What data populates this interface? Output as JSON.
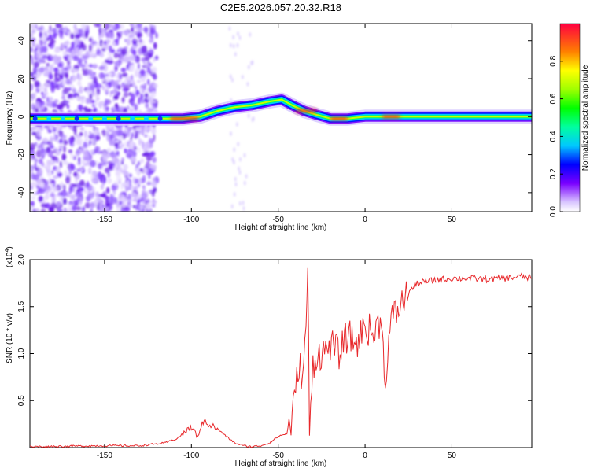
{
  "title": "C2E5.2026.057.20.32.R18",
  "chart_data": [
    {
      "type": "heatmap",
      "xlabel": "Height of straight line (km)",
      "ylabel": "Frequency (Hz)",
      "xlim": [
        -193,
        96
      ],
      "ylim": [
        -50,
        49
      ],
      "x_ticks": [
        -150,
        -100,
        -50,
        0,
        50
      ],
      "y_ticks": [
        -40,
        -20,
        0,
        20,
        40
      ],
      "ridge": [
        {
          "x": -193,
          "y": -1
        },
        {
          "x": -150,
          "y": -1
        },
        {
          "x": -120,
          "y": -1
        },
        {
          "x": -105,
          "y": -1
        },
        {
          "x": -95,
          "y": 0
        },
        {
          "x": -85,
          "y": 3
        },
        {
          "x": -75,
          "y": 5
        },
        {
          "x": -65,
          "y": 6
        },
        {
          "x": -55,
          "y": 8
        },
        {
          "x": -48,
          "y": 9
        },
        {
          "x": -42,
          "y": 6
        },
        {
          "x": -35,
          "y": 3
        },
        {
          "x": -28,
          "y": 1
        },
        {
          "x": -20,
          "y": -1
        },
        {
          "x": -10,
          "y": -1
        },
        {
          "x": 0,
          "y": 0
        },
        {
          "x": 10,
          "y": 0
        },
        {
          "x": 30,
          "y": 0
        },
        {
          "x": 60,
          "y": 0
        },
        {
          "x": 96,
          "y": 0
        }
      ],
      "colorbar": {
        "label": "Normalized spectral amplitude",
        "range": [
          0,
          1
        ],
        "ticks": [
          "0.0",
          "0.2",
          "0.4",
          "0.6",
          "0.8"
        ]
      }
    },
    {
      "type": "line",
      "xlabel": "Height of straight line (km)",
      "ylabel": "SNR (10 * v/v)",
      "y_multiplier": "(x10",
      "y_multiplier_exp": "4",
      "y_multiplier_close": ")",
      "xlim": [
        -193,
        96
      ],
      "ylim": [
        0,
        2.0
      ],
      "x_ticks": [
        -150,
        -100,
        -50,
        0,
        50
      ],
      "y_ticks": [
        "0.5",
        "1.0",
        "1.5",
        "2.0"
      ],
      "series": [
        {
          "color": "#e8282b",
          "x": [
            -193,
            -150,
            -130,
            -115,
            -108,
            -103,
            -100,
            -97,
            -95,
            -92,
            -90,
            -85,
            -80,
            -75,
            -70,
            -65,
            -60,
            -55,
            -50,
            -45,
            -42,
            -40,
            -38,
            -36,
            -34,
            -33,
            -32,
            -30,
            -27,
            -24,
            -20,
            -15,
            -10,
            -5,
            0,
            5,
            10,
            11,
            15,
            20,
            25,
            30,
            40,
            50,
            60,
            70,
            80,
            90,
            96
          ],
          "y": [
            0.01,
            0.02,
            0.02,
            0.05,
            0.1,
            0.18,
            0.22,
            0.12,
            0.2,
            0.3,
            0.25,
            0.2,
            0.12,
            0.05,
            0.02,
            0.01,
            0.02,
            0.05,
            0.12,
            0.15,
            0.3,
            0.6,
            0.9,
            0.75,
            1.2,
            2.0,
            0.1,
            0.9,
            1.0,
            1.0,
            1.1,
            1.0,
            1.2,
            1.1,
            1.3,
            1.2,
            1.4,
            0.65,
            1.35,
            1.5,
            1.65,
            1.75,
            1.78,
            1.8,
            1.8,
            1.79,
            1.8,
            1.82,
            1.8
          ]
        }
      ]
    }
  ]
}
